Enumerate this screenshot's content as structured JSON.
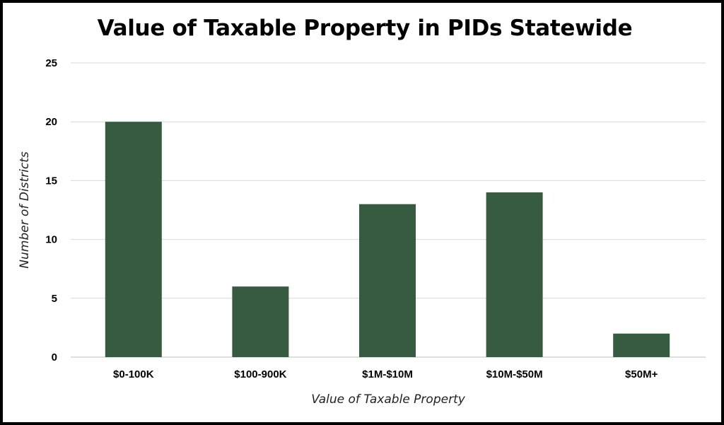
{
  "chart_data": {
    "type": "bar",
    "title": "Value of Taxable Property in PIDs Statewide",
    "xlabel": "Value of Taxable Property",
    "ylabel": "Number of Districts",
    "categories": [
      "$0-100K",
      "$100-900K",
      "$1M-$10M",
      "$10M-$50M",
      "$50M+"
    ],
    "values": [
      20,
      6,
      13,
      14,
      2
    ],
    "ylim": [
      0,
      25
    ],
    "yticks": [
      0,
      5,
      10,
      15,
      20,
      25
    ],
    "grid": true,
    "legend": "none",
    "bar_color": "#375b41",
    "grid_color": "#d9d9d9"
  }
}
